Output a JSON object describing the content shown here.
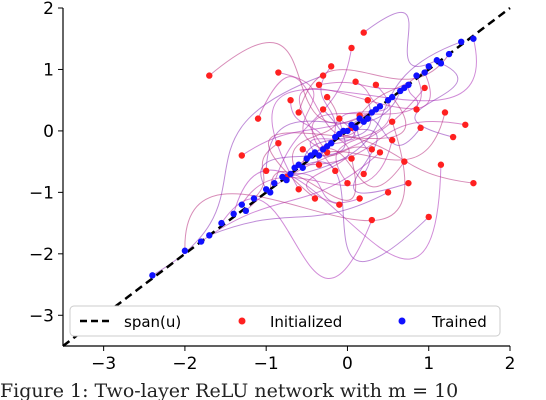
{
  "chart_data": {
    "type": "scatter",
    "xlim": [
      -3.5,
      2
    ],
    "ylim": [
      -3.5,
      2
    ],
    "xticks": [
      -3,
      -2,
      -1,
      0,
      1,
      2
    ],
    "yticks": [
      -3,
      -2,
      -1,
      0,
      1,
      2
    ],
    "xtick_labels": [
      "−3",
      "−2",
      "−1",
      "0",
      "1",
      "2"
    ],
    "ytick_labels": [
      "−3",
      "−2",
      "−1",
      "0",
      "1",
      "2"
    ],
    "grid": false,
    "legend": {
      "placement": "bottom",
      "entries": [
        {
          "label": "span(u)",
          "style": "dashed-line",
          "color": "#000000"
        },
        {
          "label": "Initialized",
          "style": "dot",
          "color": "#ff2020"
        },
        {
          "label": "Trained",
          "style": "dot",
          "color": "#1010ff"
        }
      ]
    },
    "reference_line": {
      "name": "span(u)",
      "slope": 1,
      "intercept": 0
    },
    "series": [
      {
        "name": "Initialized",
        "color": "#ff2020",
        "points": [
          [
            -0.3,
            0.9
          ],
          [
            0.05,
            1.35
          ],
          [
            -0.85,
            0.95
          ],
          [
            -1.7,
            0.9
          ],
          [
            0.2,
            1.6
          ],
          [
            -0.7,
            0.5
          ],
          [
            -0.35,
            0.75
          ],
          [
            -0.25,
            0.55
          ],
          [
            -0.3,
            0.35
          ],
          [
            -0.1,
            0.2
          ],
          [
            0.05,
            0.05
          ],
          [
            0.15,
            0.25
          ],
          [
            0.25,
            0.5
          ],
          [
            0.35,
            0.75
          ],
          [
            -1.1,
            0.2
          ],
          [
            -0.85,
            -0.2
          ],
          [
            -0.55,
            -0.3
          ],
          [
            -0.35,
            -0.55
          ],
          [
            -0.15,
            -0.65
          ],
          [
            0.05,
            -0.45
          ],
          [
            0.2,
            -0.7
          ],
          [
            0.4,
            -0.35
          ],
          [
            0.55,
            -0.15
          ],
          [
            0.7,
            -0.5
          ],
          [
            0.75,
            -0.85
          ],
          [
            0.85,
            0.35
          ],
          [
            0.95,
            0.7
          ],
          [
            1.2,
            0.3
          ],
          [
            1.3,
            -0.1
          ],
          [
            1.15,
            -0.55
          ],
          [
            1.45,
            0.1
          ],
          [
            1.55,
            -0.85
          ],
          [
            -1.0,
            -0.65
          ],
          [
            -0.6,
            -0.95
          ],
          [
            -0.25,
            -0.35
          ],
          [
            0.3,
            -0.3
          ],
          [
            0.5,
            -1.0
          ],
          [
            0.15,
            -1.1
          ],
          [
            -0.1,
            -1.2
          ],
          [
            -0.4,
            -1.1
          ],
          [
            -0.75,
            -0.75
          ],
          [
            -1.3,
            -0.4
          ],
          [
            0.0,
            -0.85
          ],
          [
            0.55,
            0.15
          ],
          [
            1.0,
            -1.4
          ],
          [
            -0.2,
            1.05
          ],
          [
            0.1,
            0.8
          ],
          [
            -0.6,
            0.3
          ],
          [
            0.9,
            0.05
          ],
          [
            0.3,
            -1.45
          ]
        ]
      },
      {
        "name": "Trained",
        "color": "#1010ff",
        "points": [
          [
            -2.4,
            -2.35
          ],
          [
            -2.0,
            -1.95
          ],
          [
            -1.7,
            -1.7
          ],
          [
            -1.4,
            -1.35
          ],
          [
            -1.3,
            -1.2
          ],
          [
            -1.15,
            -1.1
          ],
          [
            -1.0,
            -0.95
          ],
          [
            -0.9,
            -0.85
          ],
          [
            -0.8,
            -0.75
          ],
          [
            -0.7,
            -0.7
          ],
          [
            -0.6,
            -0.55
          ],
          [
            -0.5,
            -0.45
          ],
          [
            -0.45,
            -0.4
          ],
          [
            -0.4,
            -0.35
          ],
          [
            -0.3,
            -0.3
          ],
          [
            -0.2,
            -0.2
          ],
          [
            -0.15,
            -0.1
          ],
          [
            -0.1,
            -0.05
          ],
          [
            0.0,
            0.0
          ],
          [
            0.1,
            0.05
          ],
          [
            0.2,
            0.15
          ],
          [
            0.3,
            0.3
          ],
          [
            0.4,
            0.4
          ],
          [
            0.55,
            0.55
          ],
          [
            0.65,
            0.65
          ],
          [
            0.75,
            0.75
          ],
          [
            0.85,
            0.9
          ],
          [
            1.0,
            1.05
          ],
          [
            1.1,
            1.15
          ],
          [
            1.25,
            1.25
          ],
          [
            1.4,
            1.45
          ],
          [
            1.55,
            1.5
          ],
          [
            -1.25,
            -1.3
          ],
          [
            -0.95,
            -1.0
          ],
          [
            -0.55,
            -0.6
          ],
          [
            -0.25,
            -0.25
          ],
          [
            0.05,
            0.1
          ],
          [
            0.35,
            0.35
          ],
          [
            0.95,
            0.95
          ],
          [
            -0.75,
            -0.8
          ],
          [
            0.15,
            0.2
          ],
          [
            -0.05,
            0.0
          ],
          [
            0.7,
            0.7
          ],
          [
            -1.55,
            -1.5
          ],
          [
            0.5,
            0.5
          ],
          [
            -0.35,
            -0.4
          ],
          [
            1.15,
            1.1
          ],
          [
            -1.8,
            -1.8
          ],
          [
            0.25,
            0.2
          ],
          [
            -0.65,
            -0.6
          ]
        ]
      }
    ]
  },
  "caption": "Figure 1: Two-layer ReLU network with m = 10"
}
